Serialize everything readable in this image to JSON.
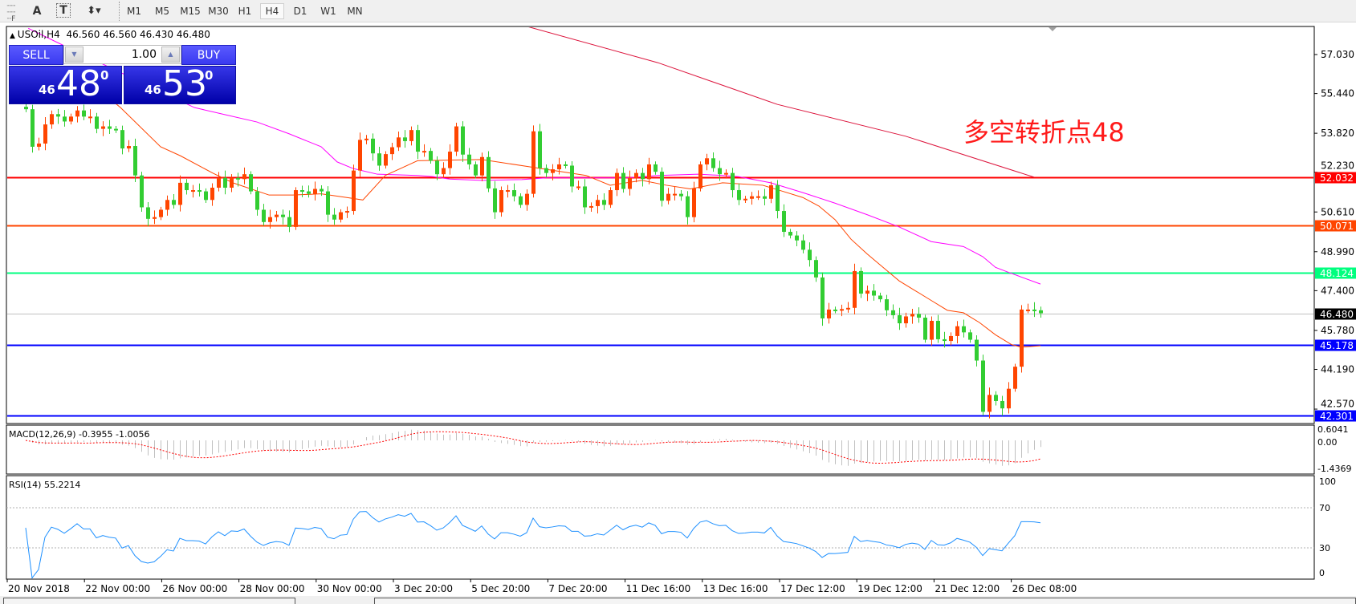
{
  "toolbar": {
    "tools": [
      {
        "icon": "grid-fixed-icon"
      },
      {
        "icon": "text-icon",
        "label": "A"
      },
      {
        "icon": "text-label-icon",
        "label": "T"
      },
      {
        "icon": "arrows-icon"
      }
    ],
    "timeframes": [
      "M1",
      "M5",
      "M15",
      "M30",
      "H1",
      "H4",
      "D1",
      "W1",
      "MN"
    ],
    "active_timeframe": "H4"
  },
  "chart": {
    "symbol": "USOil,H4",
    "ohlc": "46.560 46.560 46.430 46.480",
    "annotation": "多空转折点48",
    "annotation_color": "#ff1a1a"
  },
  "trade_panel": {
    "sell_label": "SELL",
    "buy_label": "BUY",
    "volume": "1.00",
    "sell": {
      "prefix": "46",
      "main": "48",
      "sup": "0"
    },
    "buy": {
      "prefix": "46",
      "main": "53",
      "sup": "0"
    }
  },
  "chart_data": {
    "type": "candlestick",
    "bull_color": "#ff4500",
    "bear_color": "#32cd32",
    "first_open": 54.9,
    "close": [
      54.8,
      53.27,
      53.4,
      54.18,
      54.6,
      54.5,
      54.3,
      54.5,
      54.75,
      54.5,
      54.5,
      54.0,
      54.1,
      54.0,
      53.95,
      53.2,
      53.3,
      52.1,
      50.8,
      50.33,
      50.4,
      50.7,
      51.1,
      50.9,
      51.8,
      51.5,
      51.5,
      51.45,
      51.1,
      51.6,
      52.0,
      51.6,
      52.0,
      51.95,
      52.15,
      51.45,
      50.7,
      50.2,
      50.4,
      50.5,
      50.4,
      50.0,
      51.5,
      51.45,
      51.35,
      51.55,
      51.45,
      50.5,
      50.3,
      50.6,
      50.65,
      52.3,
      53.55,
      53.6,
      53.0,
      52.5,
      52.97,
      53.25,
      53.65,
      53.5,
      53.95,
      53.07,
      53.1,
      52.7,
      52.15,
      52.4,
      53.07,
      54.1,
      52.95,
      52.55,
      52.1,
      52.85,
      51.57,
      50.6,
      51.5,
      51.5,
      51.25,
      50.9,
      51.35,
      53.9,
      52.4,
      52.2,
      52.35,
      52.55,
      52.5,
      51.65,
      51.65,
      50.8,
      50.85,
      51.1,
      50.9,
      51.5,
      52.2,
      51.55,
      52.0,
      52.2,
      51.95,
      52.55,
      52.25,
      51.07,
      51.35,
      51.35,
      51.25,
      50.4,
      51.57,
      52.55,
      52.8,
      52.4,
      52.15,
      52.2,
      51.5,
      51.1,
      51.15,
      51.25,
      51.25,
      51.15,
      51.7,
      50.65,
      49.8,
      49.65,
      49.45,
      49.07,
      48.65,
      47.94,
      46.27,
      46.63,
      46.6,
      46.65,
      46.7,
      48.2,
      47.28,
      47.4,
      47.2,
      47.05,
      46.6,
      46.4,
      46.07,
      46.35,
      46.45,
      46.3,
      45.4,
      46.17,
      45.42,
      45.35,
      45.55,
      45.95,
      45.7,
      45.4,
      44.55,
      42.46,
      43.15,
      42.9,
      42.6,
      43.4,
      44.3,
      46.63,
      46.63,
      46.6,
      46.48
    ],
    "price_ticks": [
      "57.030",
      "55.440",
      "53.820",
      "52.230",
      "50.610",
      "48.990",
      "47.400",
      "45.780",
      "44.190",
      "42.570"
    ],
    "levels": [
      {
        "value": 52.032,
        "label": "52.032",
        "color": "#ff0000"
      },
      {
        "value": 50.071,
        "label": "50.071",
        "color": "#ff4500"
      },
      {
        "value": 48.124,
        "label": "48.124",
        "color": "#00ff7f"
      },
      {
        "value": 46.48,
        "label": "46.480",
        "color": "#000000",
        "line_color": "#c0c0c0"
      },
      {
        "value": 45.178,
        "label": "45.178",
        "color": "#0000ff"
      },
      {
        "value": 42.301,
        "label": "42.301",
        "color": "#0000ff"
      }
    ],
    "moving_averages": [
      {
        "color": "#dc143c",
        "points": [
          [
            78,
            58.18
          ],
          [
            98.4,
            56.7
          ],
          [
            117,
            55.0
          ],
          [
            137,
            53.7
          ],
          [
            157,
            52.03
          ]
        ]
      },
      {
        "color": "#ff00ff",
        "points": [
          [
            0.4,
            58.1
          ],
          [
            5.1,
            57.5
          ],
          [
            26.25,
            54.87
          ],
          [
            31,
            54.58
          ],
          [
            36,
            54.28
          ],
          [
            41,
            53.8
          ],
          [
            46,
            53.27
          ],
          [
            48.5,
            52.65
          ],
          [
            51,
            52.38
          ],
          [
            54.75,
            52.15
          ],
          [
            61,
            52.1
          ],
          [
            63.5,
            52.05
          ],
          [
            66,
            51.95
          ],
          [
            71,
            51.9
          ],
          [
            77.25,
            51.93
          ],
          [
            81,
            52.0
          ],
          [
            88.5,
            52.0
          ],
          [
            93.5,
            52.0
          ],
          [
            98.5,
            52.1
          ],
          [
            104.75,
            52.15
          ],
          [
            108.5,
            52.1
          ],
          [
            111,
            52.05
          ],
          [
            116,
            51.8
          ],
          [
            121,
            51.4
          ],
          [
            126,
            50.97
          ],
          [
            131,
            50.5
          ],
          [
            136,
            50.0
          ],
          [
            141,
            49.4
          ],
          [
            146,
            49.2
          ],
          [
            149,
            48.79
          ],
          [
            151,
            48.35
          ],
          [
            153,
            48.15
          ],
          [
            158,
            47.67
          ]
        ]
      },
      {
        "color": "#ff4500",
        "points": [
          [
            10,
            55.9
          ],
          [
            14.75,
            54.87
          ],
          [
            21,
            53.27
          ],
          [
            24.1,
            52.9
          ],
          [
            29.1,
            52.2
          ],
          [
            32.25,
            51.8
          ],
          [
            37.9,
            51.3
          ],
          [
            41.6,
            51.3
          ],
          [
            46,
            51.35
          ],
          [
            50,
            51.2
          ],
          [
            52.5,
            51.1
          ],
          [
            56,
            52.1
          ],
          [
            58.5,
            52.4
          ],
          [
            61,
            52.7
          ],
          [
            71,
            52.75
          ],
          [
            78.5,
            52.45
          ],
          [
            83.5,
            52.25
          ],
          [
            87.25,
            52.1
          ],
          [
            91,
            51.7
          ],
          [
            96,
            51.9
          ],
          [
            99.75,
            51.7
          ],
          [
            103.5,
            51.55
          ],
          [
            108.5,
            51.8
          ],
          [
            114.75,
            51.7
          ],
          [
            117.9,
            51.45
          ],
          [
            121,
            51.2
          ],
          [
            123.5,
            50.85
          ],
          [
            126,
            50.3
          ],
          [
            128.5,
            49.5
          ],
          [
            131,
            48.9
          ],
          [
            133.5,
            48.35
          ],
          [
            136,
            47.8
          ],
          [
            138.5,
            47.4
          ],
          [
            141,
            47.0
          ],
          [
            143.5,
            46.6
          ],
          [
            146,
            46.5
          ],
          [
            148.5,
            46.1
          ],
          [
            151,
            45.6
          ],
          [
            153.5,
            45.2
          ],
          [
            155,
            45.1
          ],
          [
            158,
            45.15
          ]
        ]
      }
    ],
    "time_labels": [
      "20 Nov 2018",
      "22 Nov 00:00",
      "26 Nov 00:00",
      "28 Nov 00:00",
      "30 Nov 00:00",
      "3 Dec 20:00",
      "5 Dec 20:00",
      "7 Dec 20:00",
      "11 Dec 16:00",
      "13 Dec 16:00",
      "17 Dec 12:00",
      "19 Dec 12:00",
      "21 Dec 12:00",
      "26 Dec 08:00"
    ],
    "macd": {
      "label": "MACD(12,26,9) -0.3955 -1.0056",
      "ticks": [
        "0.6041",
        "0.00",
        "-1.4369"
      ],
      "hist_color": "#c0c0c0",
      "signal_color": "#ff0000"
    },
    "rsi": {
      "label": "RSI(14) 55.2214",
      "ticks": [
        "100",
        "70",
        "30",
        "0"
      ],
      "levels": [
        70,
        30
      ],
      "line_color": "#1e90ff"
    }
  }
}
